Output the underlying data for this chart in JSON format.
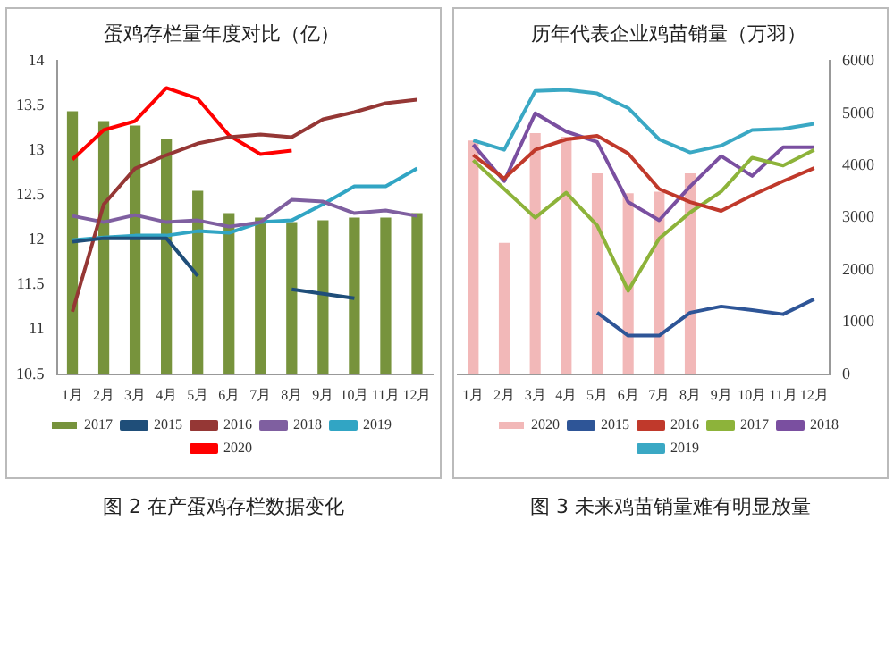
{
  "chart_data": [
    {
      "type": "bar",
      "title": "蛋鸡存栏量年度对比（亿）",
      "categories": [
        "1月",
        "2月",
        "3月",
        "4月",
        "5月",
        "6月",
        "7月",
        "8月",
        "9月",
        "10月",
        "11月",
        "12月"
      ],
      "series": [
        {
          "name": "2017",
          "color": "#77933c",
          "values": [
            13.44,
            13.33,
            13.28,
            13.13,
            12.55,
            12.3,
            12.25,
            12.2,
            12.22,
            12.25,
            12.25,
            12.3
          ]
        },
        {
          "name": "2015",
          "type": "line",
          "color": "#1f4e79",
          "values": [
            11.98,
            12.02,
            12.02,
            12.02,
            11.6,
            null,
            null,
            11.45,
            11.4,
            11.35,
            null,
            null
          ]
        },
        {
          "name": "2016",
          "type": "line",
          "color": "#953735",
          "values": [
            11.2,
            12.4,
            12.8,
            12.95,
            13.08,
            13.15,
            13.18,
            13.15,
            13.35,
            13.43,
            13.53,
            13.57
          ]
        },
        {
          "name": "2018",
          "type": "line",
          "color": "#7f5fa0",
          "values": [
            12.27,
            12.2,
            12.28,
            12.2,
            12.22,
            12.15,
            12.2,
            12.45,
            12.43,
            12.3,
            12.33,
            12.27
          ]
        },
        {
          "name": "2019",
          "type": "line",
          "color": "#31a5c4",
          "values": [
            12.0,
            12.03,
            12.05,
            12.05,
            12.1,
            12.08,
            12.2,
            12.22,
            12.4,
            12.6,
            12.6,
            12.8
          ]
        },
        {
          "name": "2020",
          "type": "line",
          "color": "#ff0000",
          "values": [
            12.9,
            13.23,
            13.33,
            13.7,
            13.58,
            13.17,
            12.96,
            13.0,
            null,
            null,
            null,
            null
          ]
        }
      ],
      "ylim": [
        10.5,
        14
      ],
      "yticks": [
        10.5,
        11,
        11.5,
        12,
        12.5,
        13,
        13.5,
        14
      ],
      "grid": false,
      "legend": "bottom",
      "annotations": [
        "图 2 在产蛋鸡存栏数据变化"
      ]
    },
    {
      "type": "bar",
      "title": "历年代表企业鸡苗销量（万羽）",
      "categories": [
        "1月",
        "2月",
        "3月",
        "4月",
        "5月",
        "6月",
        "7月",
        "8月",
        "9月",
        "10月",
        "11月",
        "12月"
      ],
      "series": [
        {
          "name": "2020",
          "axis": "y2",
          "color": "#f2b8b8",
          "values": [
            4480,
            2520,
            4620,
            4550,
            3850,
            3470,
            3500,
            3850,
            null,
            null,
            null,
            null
          ]
        },
        {
          "name": "2015",
          "type": "line",
          "axis": "y2",
          "color": "#2e5597",
          "values": [
            null,
            null,
            null,
            null,
            1180,
            740,
            740,
            1180,
            1300,
            1230,
            1150,
            1440
          ]
        },
        {
          "name": "2016",
          "type": "line",
          "axis": "y2",
          "color": "#c0392b",
          "values": [
            4200,
            3750,
            4300,
            4500,
            4570,
            4230,
            3550,
            3300,
            3130,
            3430,
            3700,
            3950
          ]
        },
        {
          "name": "2017",
          "type": "line",
          "axis": "y2",
          "color": "#8db33a",
          "values": [
            4100,
            3550,
            3000,
            3480,
            2850,
            1600,
            2600,
            3100,
            3500,
            4150,
            4000,
            4300
          ]
        },
        {
          "name": "2018",
          "type": "line",
          "axis": "y2",
          "color": "#7a4fa0",
          "values": [
            4400,
            3700,
            5000,
            4650,
            4450,
            3300,
            2950,
            3600,
            4180,
            3800,
            4350,
            4350
          ]
        },
        {
          "name": "2019",
          "type": "line",
          "axis": "y2",
          "color": "#3aa8c4",
          "values": [
            4480,
            4300,
            5430,
            5450,
            5380,
            5100,
            4500,
            4250,
            4380,
            4680,
            4700,
            4800
          ]
        }
      ],
      "y2lim": [
        0,
        6000
      ],
      "y2ticks": [
        0,
        1000,
        2000,
        3000,
        4000,
        5000,
        6000
      ],
      "grid": false,
      "legend": "bottom",
      "annotations": [
        "图 3 未来鸡苗销量难有明显放量"
      ]
    }
  ]
}
